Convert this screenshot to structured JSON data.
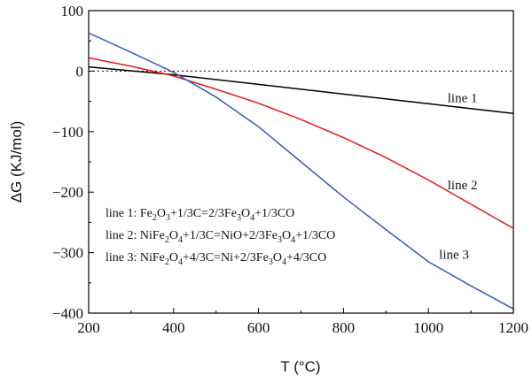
{
  "chart_data": {
    "type": "line",
    "xlabel": "T (°C)",
    "ylabel": "ΔG (KJ/mol)",
    "xlim": [
      200,
      1200
    ],
    "ylim": [
      -400,
      100
    ],
    "x_ticks": [
      200,
      400,
      600,
      800,
      1000,
      1200
    ],
    "y_ticks": [
      100,
      0,
      -100,
      -200,
      -300,
      -400
    ],
    "x_tick_labels": [
      "200",
      "400",
      "600",
      "800",
      "1000",
      "1200"
    ],
    "y_tick_labels": [
      "100",
      "0",
      "−100",
      "−200",
      "−300",
      "−400"
    ],
    "reference_line": {
      "y": 0,
      "style": "dotted"
    },
    "grid": false,
    "series": [
      {
        "name": "line 1",
        "color": "#000000",
        "x": [
          200,
          400,
          600,
          800,
          1000,
          1200
        ],
        "y": [
          7,
          -6,
          -22,
          -38,
          -54,
          -70
        ]
      },
      {
        "name": "line 2",
        "color": "#e31a1c",
        "x": [
          200,
          300,
          400,
          500,
          600,
          700,
          800,
          900,
          1000,
          1100,
          1200
        ],
        "y": [
          22,
          8,
          -8,
          -30,
          -53,
          -80,
          -110,
          -143,
          -180,
          -220,
          -260
        ]
      },
      {
        "name": "line 3",
        "color": "#3b5bb5",
        "x": [
          200,
          300,
          400,
          500,
          600,
          700,
          800,
          900,
          1000,
          1100,
          1200
        ],
        "y": [
          63,
          31,
          -2,
          -43,
          -92,
          -150,
          -208,
          -262,
          -315,
          -355,
          -393
        ]
      }
    ],
    "annotations": [
      {
        "text": "line 1",
        "x": 1045,
        "y": -51
      },
      {
        "text": "line 2",
        "x": 1045,
        "y": -195
      },
      {
        "text": "line 3",
        "x": 1025,
        "y": -310
      }
    ],
    "legend_box": {
      "rows": [
        {
          "label": "line 1: ",
          "parts": [
            [
              "Fe",
              ""
            ],
            [
              "2",
              "sub"
            ],
            [
              "O",
              ""
            ],
            [
              "3",
              "sub"
            ],
            [
              "+1/3C=2/3Fe",
              ""
            ],
            [
              "3",
              "sub"
            ],
            [
              "O",
              ""
            ],
            [
              "4",
              "sub"
            ],
            [
              "+1/3CO",
              ""
            ]
          ]
        },
        {
          "label": "line 2: ",
          "parts": [
            [
              "NiFe",
              ""
            ],
            [
              "2",
              "sub"
            ],
            [
              "O",
              ""
            ],
            [
              "4",
              "sub"
            ],
            [
              "+1/3C=NiO+2/3Fe",
              ""
            ],
            [
              "3",
              "sub"
            ],
            [
              "O",
              ""
            ],
            [
              "4",
              "sub"
            ],
            [
              "+1/3CO",
              ""
            ]
          ]
        },
        {
          "label": "line 3: ",
          "parts": [
            [
              "NiFe",
              ""
            ],
            [
              "2",
              "sub"
            ],
            [
              "O",
              ""
            ],
            [
              "4",
              "sub"
            ],
            [
              "+4/3C=Ni+2/3Fe",
              ""
            ],
            [
              "3",
              "sub"
            ],
            [
              "O",
              ""
            ],
            [
              "4",
              "sub"
            ],
            [
              "+4/3CO",
              ""
            ]
          ]
        }
      ]
    }
  }
}
